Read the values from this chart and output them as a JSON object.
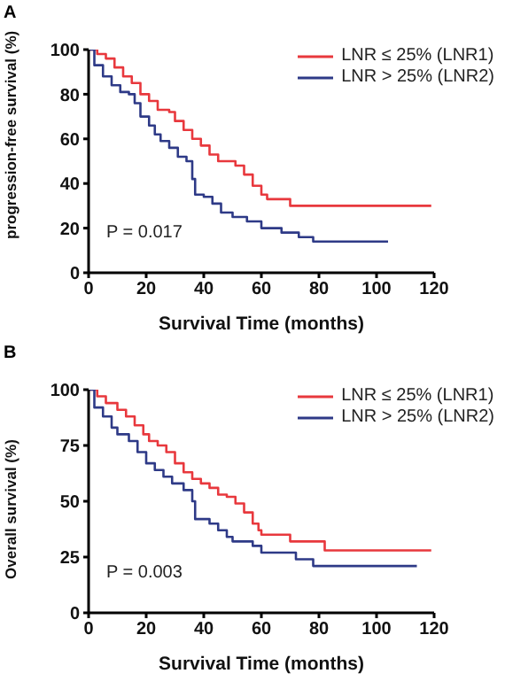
{
  "chart_data": [
    {
      "type": "step",
      "xlabel": "Survival Time (months)",
      "ylabel": "progression-free survival  (%)",
      "annotations": [
        "A",
        "P = 0.017"
      ],
      "legend": "top right",
      "xlim": [
        0,
        120
      ],
      "xticks": [
        0,
        20,
        40,
        60,
        80,
        100,
        120
      ],
      "ylim": [
        0,
        100
      ],
      "yticks": [
        0,
        20,
        40,
        60,
        80,
        100
      ],
      "grid": false,
      "series": [
        {
          "name": "LNR ≤ 25% (LNR1)",
          "color": "#e8383d",
          "x": [
            0,
            3,
            6,
            9,
            12,
            15,
            18,
            21,
            24,
            28,
            30,
            33,
            36,
            39,
            42,
            45,
            48,
            51,
            54,
            57,
            60,
            62,
            70,
            119
          ],
          "values": [
            100,
            98,
            96,
            92,
            88,
            85,
            80,
            77,
            73,
            72,
            68,
            64,
            60,
            57,
            53,
            50,
            50,
            48,
            44,
            39,
            35,
            33,
            30,
            30
          ]
        },
        {
          "name": "LNR > 25% (LNR2)",
          "color": "#2e3a87",
          "x": [
            0,
            2,
            5,
            8,
            11,
            14,
            16,
            18,
            21,
            23,
            25,
            28,
            31,
            34,
            36,
            37,
            40,
            43,
            46,
            50,
            55,
            60,
            67,
            73,
            78,
            104
          ],
          "values": [
            100,
            93,
            88,
            84,
            81,
            80,
            76,
            70,
            66,
            62,
            59,
            56,
            52,
            50,
            42,
            35,
            34,
            31,
            27,
            25,
            23,
            20,
            18,
            16,
            14,
            14
          ]
        }
      ]
    },
    {
      "type": "step",
      "xlabel": "Survival Time (months)",
      "ylabel": "Overall survival (%)",
      "annotations": [
        "B",
        "P = 0.003"
      ],
      "legend": "top right",
      "xlim": [
        0,
        120
      ],
      "xticks": [
        0,
        20,
        40,
        60,
        80,
        100,
        120
      ],
      "ylim": [
        0,
        100
      ],
      "yticks": [
        0,
        25,
        50,
        75,
        100
      ],
      "grid": false,
      "series": [
        {
          "name": "LNR ≤ 25% (LNR1)",
          "color": "#e8383d",
          "x": [
            0,
            3,
            6,
            10,
            13,
            16,
            19,
            21,
            24,
            27,
            30,
            33,
            36,
            39,
            42,
            45,
            48,
            51,
            54,
            57,
            59,
            60,
            70,
            82,
            119
          ],
          "values": [
            100,
            97,
            94,
            91,
            88,
            84,
            80,
            77,
            75,
            72,
            67,
            63,
            60,
            58,
            56,
            53,
            52,
            49,
            45,
            40,
            37,
            35,
            32,
            28,
            28
          ]
        },
        {
          "name": "LNR > 25% (LNR2)",
          "color": "#2e3a87",
          "x": [
            0,
            2,
            5,
            8,
            10,
            14,
            17,
            20,
            23,
            26,
            29,
            33,
            36,
            37,
            42,
            45,
            48,
            50,
            57,
            60,
            72,
            78,
            114
          ],
          "values": [
            100,
            92,
            88,
            83,
            80,
            77,
            72,
            67,
            64,
            61,
            58,
            55,
            50,
            42,
            40,
            37,
            34,
            32,
            30,
            27,
            24,
            21,
            21
          ]
        }
      ]
    }
  ]
}
